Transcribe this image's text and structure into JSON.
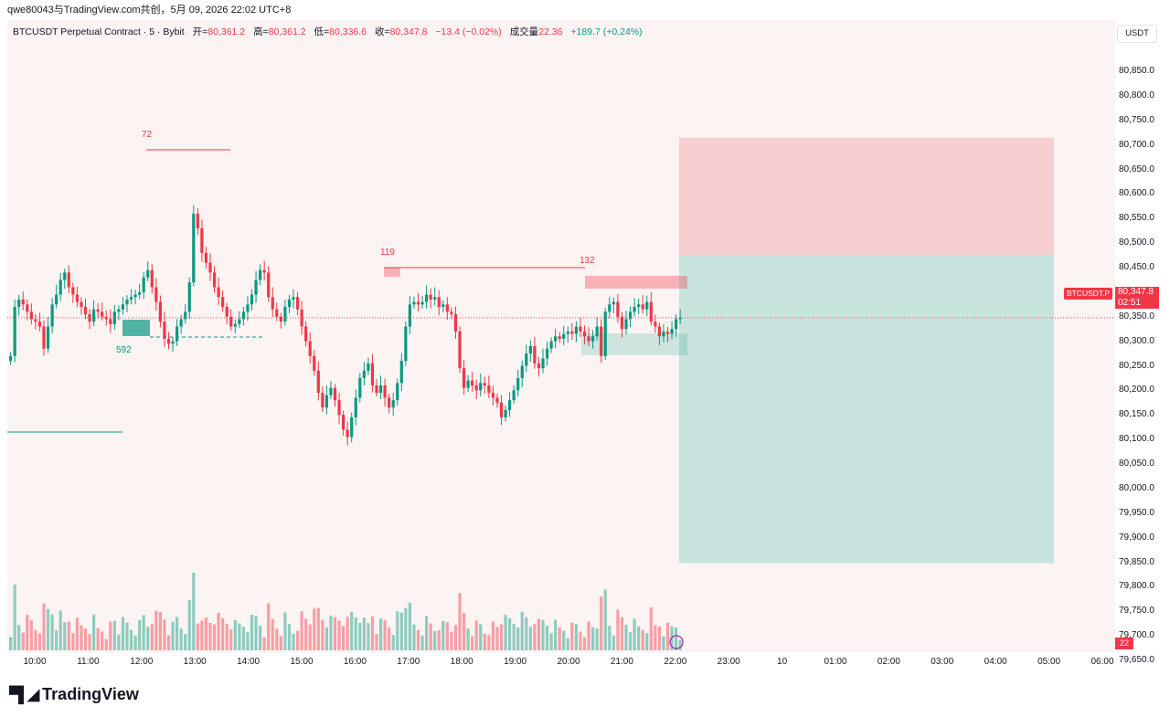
{
  "header": {
    "attribution": "qwe80043与TradingView.com共创，5月 09, 2026 22:02 UTC+8"
  },
  "legend": {
    "symbol": "BTCUSDT Perpetual Contract · 5 · Bybit",
    "open_label": "开=",
    "open": "80,361.2",
    "high_label": "高=",
    "high": "80,361.2",
    "low_label": "低=",
    "low": "80,336.6",
    "close_label": "收=",
    "close": "80,347.8",
    "change": "−13.4 (−0.02%)",
    "volume_label": "成交量",
    "volume": "22.36",
    "volume_change": "+189.7 (+0.24%)"
  },
  "currency_button": "USDT",
  "price_tag": {
    "symbol": "BTCUSDT.P",
    "price": "80,347.8",
    "countdown": "02:51"
  },
  "volume_tag": "22",
  "annotations": {
    "high_count": "72",
    "low_count": "592",
    "mid_high_count": "119",
    "recent_high_count": "132"
  },
  "footer": {
    "brand": "TradingView"
  },
  "colors": {
    "up": "#089981",
    "down": "#f23645",
    "background": "#fbf4f3",
    "stop_zone": "#f7cfd1",
    "target_zone": "#c8e4df"
  },
  "chart_data": {
    "type": "candlestick",
    "title": "BTCUSDT Perpetual Contract · 5 · Bybit",
    "x_ticks": [
      "10:00",
      "11:00",
      "12:00",
      "13:00",
      "14:00",
      "15:00",
      "16:00",
      "17:00",
      "18:00",
      "19:00",
      "20:00",
      "21:00",
      "22:00",
      "23:00",
      "10",
      "01:00",
      "02:00",
      "03:00",
      "04:00",
      "05:00",
      "06:00"
    ],
    "y_ticks": [
      "80,850.0",
      "80,800.0",
      "80,750.0",
      "80,700.0",
      "80,650.0",
      "80,600.0",
      "80,550.0",
      "80,500.0",
      "80,450.0",
      "80,400.0",
      "80,350.0",
      "80,300.0",
      "80,250.0",
      "80,200.0",
      "80,150.0",
      "80,100.0",
      "80,050.0",
      "80,000.0",
      "79,950.0",
      "79,900.0",
      "79,850.0",
      "79,800.0",
      "79,750.0",
      "79,700.0",
      "79,650.0"
    ],
    "ylim": [
      79630,
      80875
    ],
    "close_series": [
      80270,
      80370,
      80385,
      80375,
      80360,
      80345,
      80340,
      80330,
      80285,
      80330,
      80375,
      80395,
      80425,
      80440,
      80410,
      80395,
      80380,
      80370,
      80355,
      80340,
      80365,
      80360,
      80350,
      80345,
      80335,
      80360,
      80365,
      80375,
      80385,
      80390,
      80395,
      80400,
      80430,
      80445,
      80410,
      80380,
      80340,
      80305,
      80295,
      80300,
      80330,
      80345,
      80360,
      80420,
      80560,
      80530,
      80480,
      80460,
      80440,
      80410,
      80390,
      80370,
      80350,
      80330,
      80335,
      80345,
      80360,
      80375,
      80395,
      80425,
      80445,
      80440,
      80390,
      80365,
      80350,
      80340,
      80370,
      80385,
      80390,
      80365,
      80330,
      80300,
      80270,
      80240,
      80195,
      80165,
      80190,
      80205,
      80180,
      80150,
      80120,
      80105,
      80145,
      80185,
      80225,
      80240,
      80255,
      80210,
      80195,
      80210,
      80185,
      80165,
      80180,
      80215,
      80260,
      80330,
      80375,
      80380,
      80375,
      80380,
      80395,
      80385,
      80390,
      80370,
      80375,
      80360,
      80355,
      80320,
      80245,
      80205,
      80220,
      80210,
      80200,
      80215,
      80210,
      80195,
      80185,
      80175,
      80145,
      80160,
      80180,
      80200,
      80225,
      80250,
      80275,
      80290,
      80255,
      80245,
      80265,
      80285,
      80300,
      80310,
      80305,
      80315,
      80320,
      80315,
      80330,
      80320,
      80310,
      80300,
      80310,
      80330,
      80270,
      80360,
      80375,
      80380,
      80350,
      80325,
      80345,
      80360,
      80370,
      80375,
      80365,
      80380,
      80340,
      80330,
      80310,
      80320,
      80315,
      80325,
      80345,
      80348
    ]
  }
}
